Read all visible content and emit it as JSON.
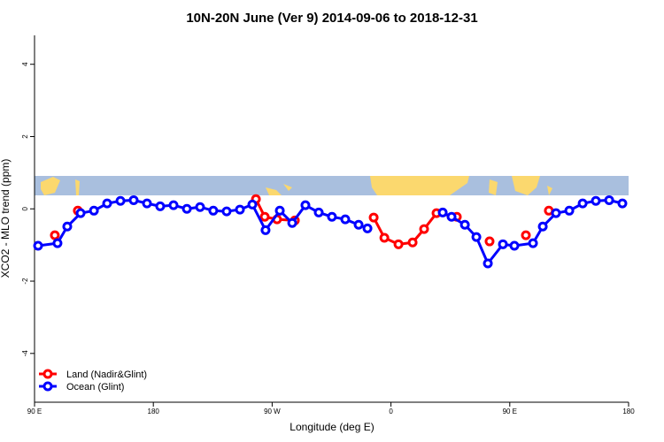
{
  "chart_data": {
    "type": "line",
    "title": "10N-20N June (Ver 9)   2014-09-06 to 2018-12-31",
    "x_label": "Longitude (deg E)",
    "y_label": "XCO2 - MLO trend (ppm)",
    "xlim": [
      90,
      540
    ],
    "ylim": [
      -5.35,
      4.8
    ],
    "xticks": [
      {
        "value": 90,
        "label": "90 E"
      },
      180,
      {
        "value": 270,
        "label": "90 W"
      },
      {
        "value": 360,
        "label": "0"
      },
      {
        "value": 450,
        "label": "90 E"
      },
      {
        "value": 540,
        "label": "180"
      }
    ],
    "yticks": [
      -4,
      -2,
      0,
      2,
      4
    ],
    "legend": "bottom-left",
    "series": [
      {
        "name": "Land (Nadir&Glint)",
        "color": "#ff0000",
        "x": [
          105.4,
          null,
          122.8,
          null,
          257.7,
          264.4,
          273.7,
          287.2,
          null,
          346.9,
          355,
          365.7,
          376.4,
          385.1,
          394.5,
          409.9,
          null,
          434.7,
          null,
          462.2,
          null,
          479.6
        ],
        "values": [
          -0.73,
          null,
          -0.05,
          null,
          0.27,
          -0.22,
          -0.29,
          -0.32,
          null,
          -0.24,
          -0.8,
          -0.98,
          -0.93,
          -0.56,
          -0.12,
          -0.22,
          null,
          -0.9,
          null,
          -0.73,
          null,
          -0.05
        ]
      },
      {
        "name": "Ocean (Glint)",
        "color": "#0000ff",
        "x": [
          92.7,
          107.4,
          114.8,
          124.9,
          135,
          145,
          155.1,
          165.1,
          175.2,
          185.2,
          195.3,
          205.4,
          215.4,
          225.4,
          235.5,
          245.6,
          255,
          265,
          275.8,
          285.2,
          295.2,
          305.3,
          315.3,
          325.4,
          335.5,
          342.2,
          null,
          399.2,
          405.9,
          416,
          424.7,
          433.4,
          444.8,
          453.5,
          467.6,
          475,
          485,
          495.1,
          505.2,
          515.2,
          525.3,
          535.3
        ],
        "values": [
          -1.02,
          -0.95,
          -0.49,
          -0.12,
          -0.05,
          0.15,
          0.22,
          0.24,
          0.15,
          0.07,
          0.1,
          0,
          0.05,
          -0.05,
          -0.07,
          -0.02,
          0.12,
          -0.59,
          -0.05,
          -0.39,
          0.1,
          -0.1,
          -0.22,
          -0.29,
          -0.44,
          -0.54,
          null,
          -0.1,
          -0.22,
          -0.44,
          -0.78,
          -1.51,
          -0.98,
          -1.02,
          -0.95,
          -0.49,
          -0.12,
          -0.05,
          0.15,
          0.22,
          0.24,
          0.15
        ]
      }
    ]
  }
}
